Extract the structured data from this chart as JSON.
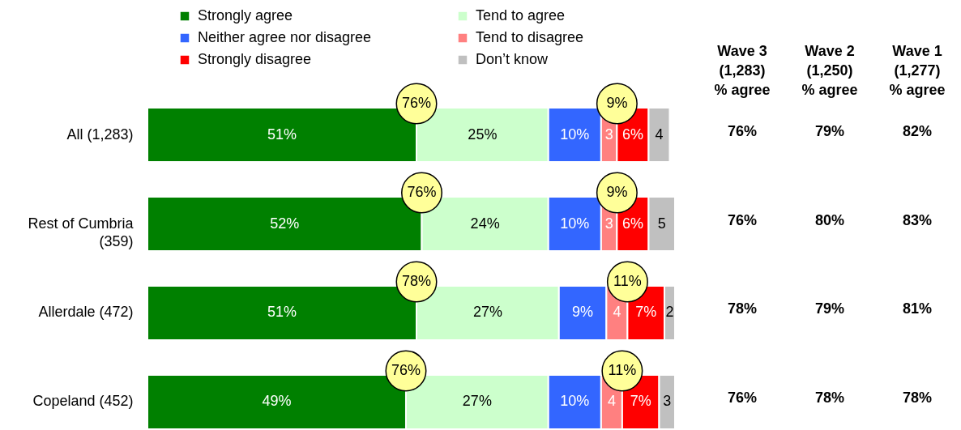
{
  "chart_data": [
    {
      "type": "bar",
      "orientation": "horizontal",
      "stacked": true,
      "categories": [
        "All (1,283)",
        "Rest of Cumbria (359)",
        "Allerdale (472)",
        "Copeland (452)"
      ],
      "series": [
        {
          "name": "Strongly agree",
          "color": "#008000",
          "values": [
            51,
            52,
            51,
            49
          ],
          "value_labels": [
            "51%",
            "52%",
            "51%",
            "49%"
          ]
        },
        {
          "name": "Tend to agree",
          "color": "#ccffcc",
          "values": [
            25,
            24,
            27,
            27
          ],
          "value_labels": [
            "25%",
            "24%",
            "27%",
            "27%"
          ]
        },
        {
          "name": "Neither agree nor disagree",
          "color": "#3366ff",
          "values": [
            10,
            10,
            9,
            10
          ],
          "value_labels": [
            "10%",
            "10%",
            "9%",
            "10%"
          ]
        },
        {
          "name": "Tend to disagree",
          "color": "#ff8080",
          "values": [
            3,
            3,
            4,
            4
          ],
          "value_labels": [
            "3",
            "3",
            "4",
            "4"
          ]
        },
        {
          "name": "Strongly disagree",
          "color": "#ff0000",
          "values": [
            6,
            6,
            7,
            7
          ],
          "value_labels": [
            "6%",
            "6%",
            "7%",
            "7%"
          ]
        },
        {
          "name": "Don’t know",
          "color": "#c0c0c0",
          "values": [
            4,
            5,
            2,
            3
          ],
          "value_labels": [
            "4",
            "5",
            "2",
            "3"
          ]
        }
      ],
      "legend": "top",
      "tick_labels": "y",
      "annotations": [
        {
          "text": "76%",
          "x": 51,
          "y": "All (1,283)"
        },
        {
          "text": "9%",
          "x": 89,
          "y": "All (1,283)"
        },
        {
          "text": "76%",
          "x": 52,
          "y": "Rest of Cumbria (359)"
        },
        {
          "text": "9%",
          "x": 89,
          "y": "Rest of Cumbria (359)"
        },
        {
          "text": "78%",
          "x": 51,
          "y": "Allerdale (472)"
        },
        {
          "text": "11%",
          "x": 91,
          "y": "Allerdale (472)"
        },
        {
          "text": "76%",
          "x": 49,
          "y": "Copeland (452)"
        },
        {
          "text": "11%",
          "x": 90,
          "y": "Copeland (452)"
        }
      ]
    },
    {
      "type": "other",
      "categories": [
        "Wave 3 (1,283) % agree",
        "Wave 2 (1,250) % agree",
        "Wave 1 (1,277) % agree"
      ],
      "annotations": [
        "76%",
        "79%",
        "82%",
        "76%",
        "80%",
        "83%",
        "78%",
        "79%",
        "81%",
        "76%",
        "78%",
        "78%"
      ]
    }
  ]
}
